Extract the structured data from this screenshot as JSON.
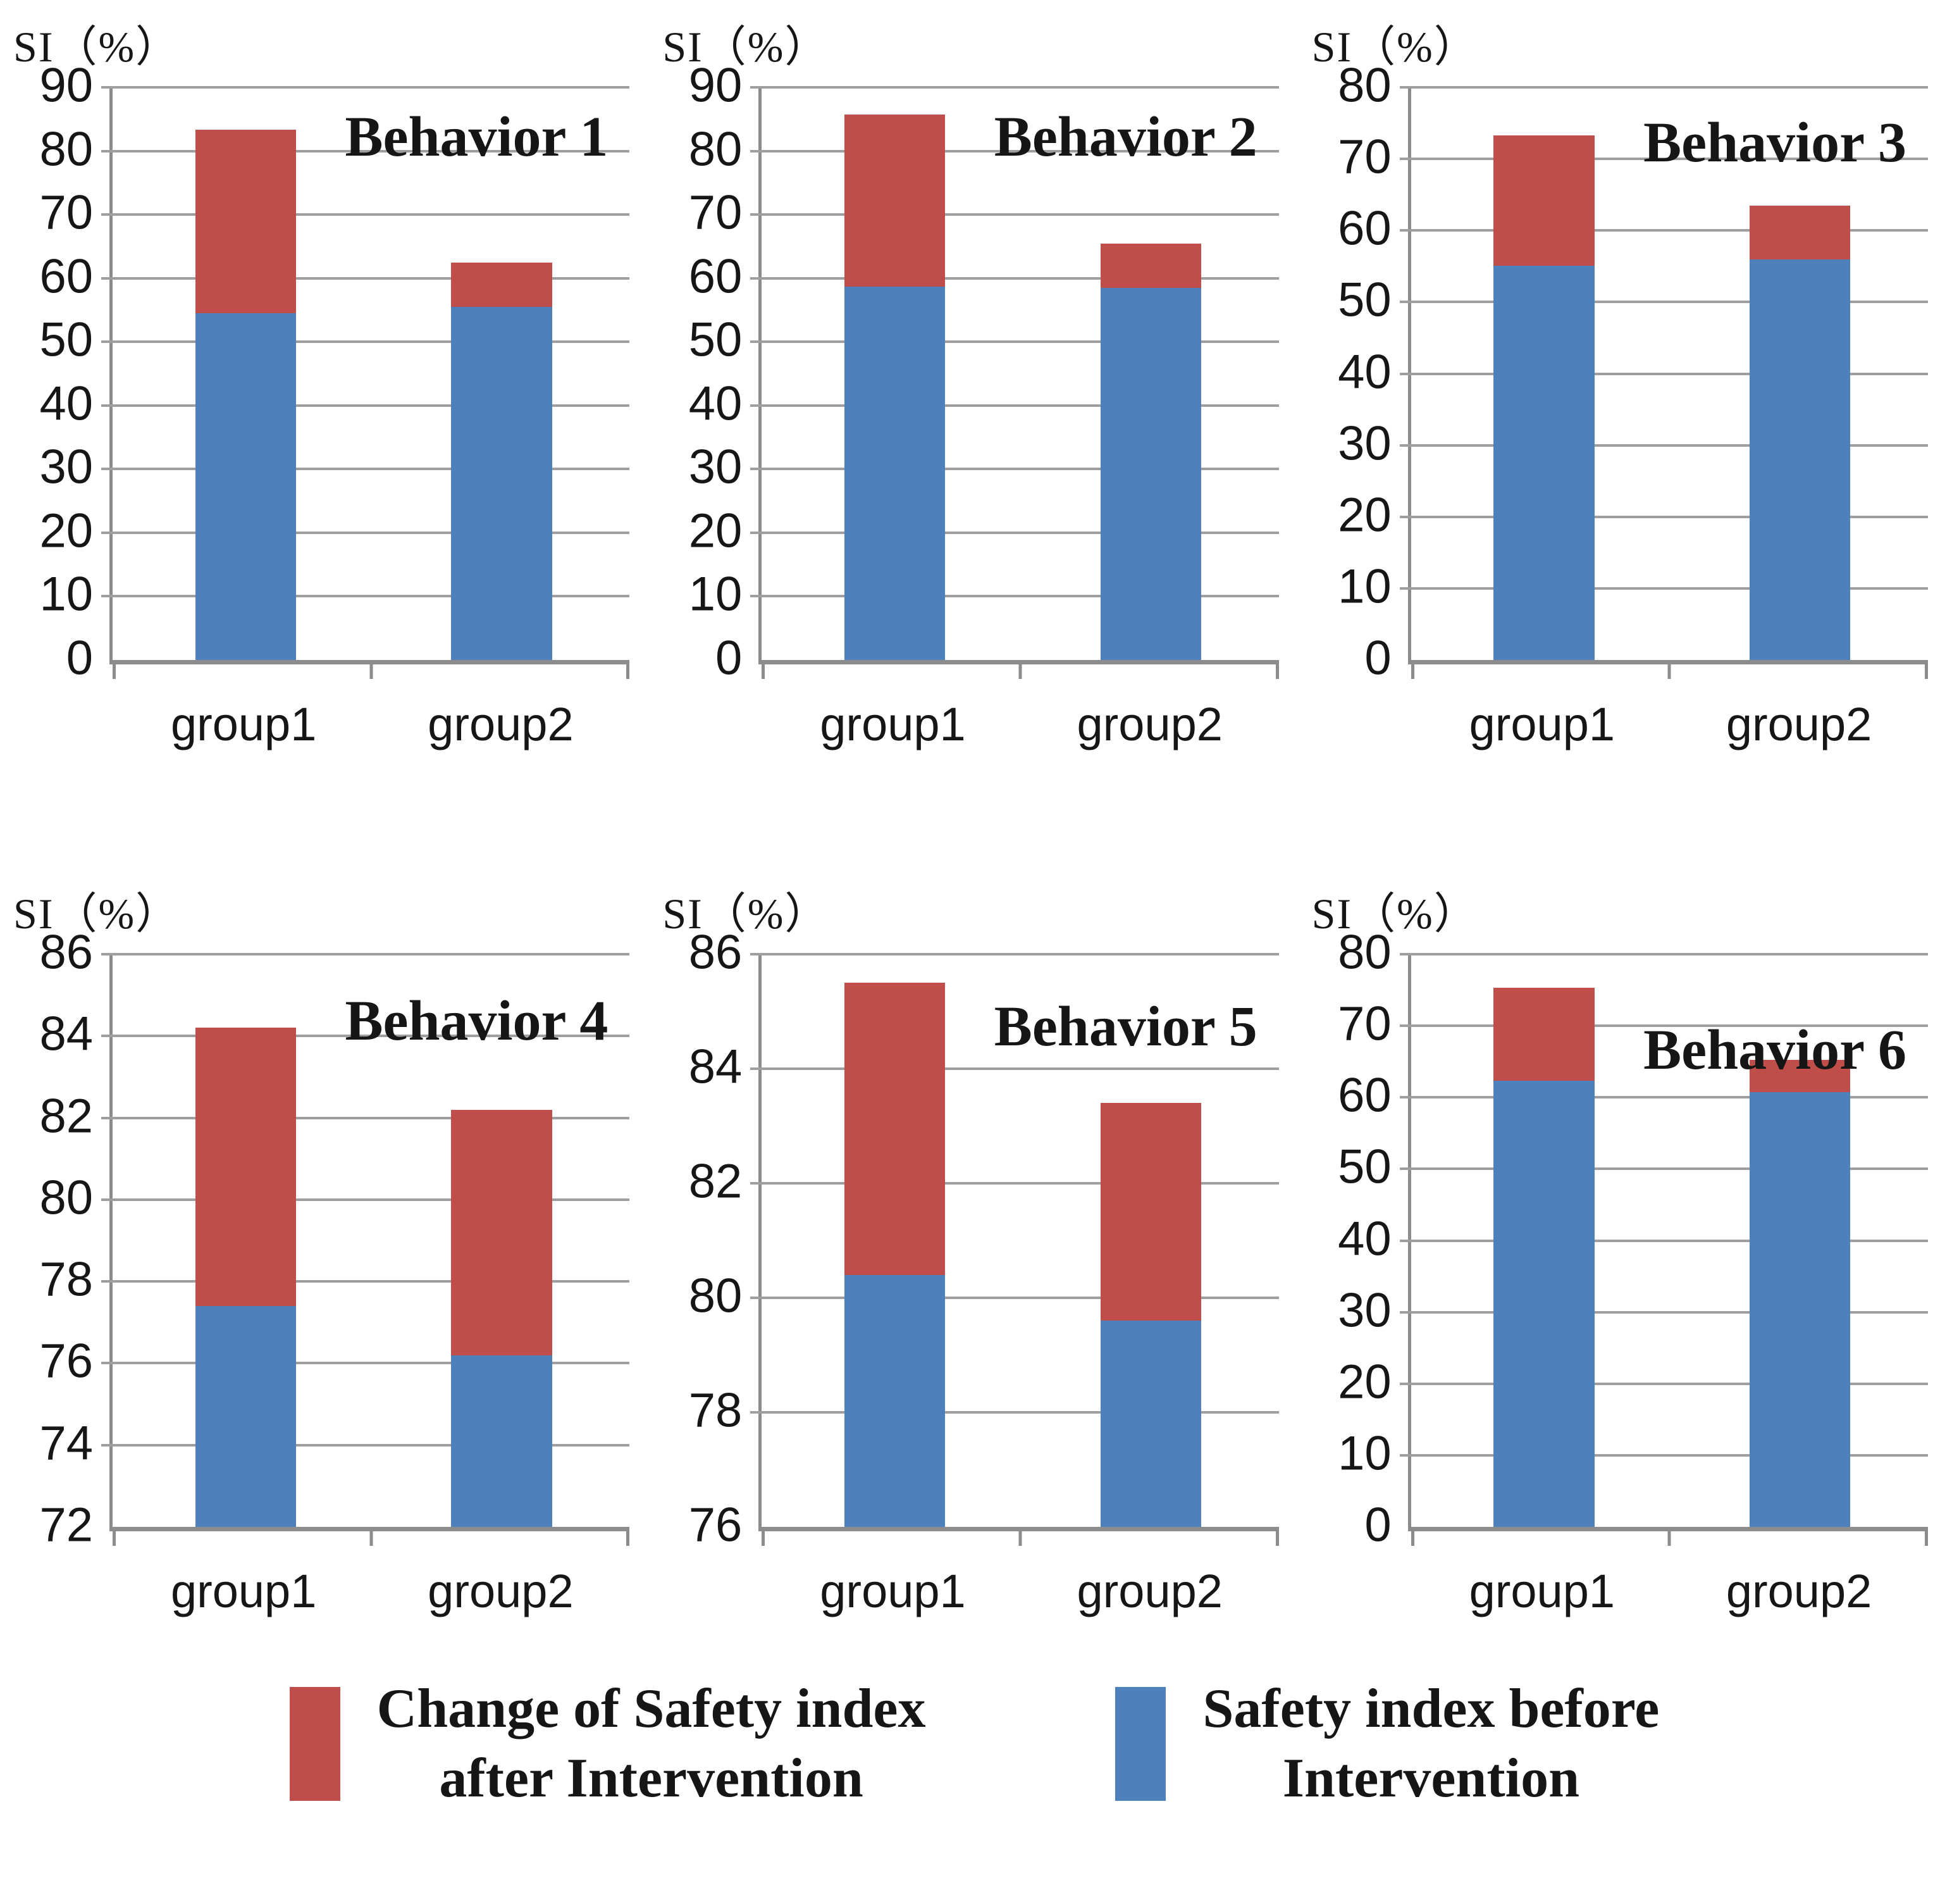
{
  "colors": {
    "series_red": "#BF4E4B",
    "series_blue": "#4E80BC",
    "gridline": "#9E9E9E",
    "axis": "#8C8C8C",
    "text": "#161616"
  },
  "legend": {
    "items": [
      {
        "label": "Change of Safety index\nafter Intervention",
        "color_key": "series_red"
      },
      {
        "label": "Safety index before\nIntervention",
        "color_key": "series_blue"
      }
    ]
  },
  "chart_data": [
    {
      "type": "bar",
      "stacked": true,
      "title": "Behavior 1",
      "ylabel": "SI（%）",
      "categories": [
        "group1",
        "group2"
      ],
      "ylim": [
        0,
        90
      ],
      "ytick_step": 10,
      "grid": true,
      "legend_position": "figure-bottom",
      "title_top_pct": 3,
      "series": [
        {
          "name": "Safety index before Intervention",
          "color_key": "series_blue",
          "values": [
            54.5,
            55.5
          ]
        },
        {
          "name": "Change of Safety index after Intervention",
          "color_key": "series_red",
          "values": [
            28.8,
            7.0
          ]
        }
      ],
      "totals": [
        83.3,
        62.5
      ]
    },
    {
      "type": "bar",
      "stacked": true,
      "title": "Behavior 2",
      "ylabel": "SI（%）",
      "categories": [
        "group1",
        "group2"
      ],
      "ylim": [
        0,
        90
      ],
      "ytick_step": 10,
      "grid": true,
      "legend_position": "figure-bottom",
      "title_top_pct": 3,
      "series": [
        {
          "name": "Safety index before Intervention",
          "color_key": "series_blue",
          "values": [
            58.7,
            58.5
          ]
        },
        {
          "name": "Change of Safety index after Intervention",
          "color_key": "series_red",
          "values": [
            27.0,
            6.9
          ]
        }
      ],
      "totals": [
        85.7,
        65.4
      ]
    },
    {
      "type": "bar",
      "stacked": true,
      "title": "Behavior 3",
      "ylabel": "SI（%）",
      "categories": [
        "group1",
        "group2"
      ],
      "ylim": [
        0,
        80
      ],
      "ytick_step": 10,
      "grid": true,
      "legend_position": "figure-bottom",
      "title_top_pct": 4,
      "series": [
        {
          "name": "Safety index before Intervention",
          "color_key": "series_blue",
          "values": [
            55.1,
            56.0
          ]
        },
        {
          "name": "Change of Safety index after Intervention",
          "color_key": "series_red",
          "values": [
            18.2,
            7.5
          ]
        }
      ],
      "totals": [
        73.3,
        63.5
      ]
    },
    {
      "type": "bar",
      "stacked": true,
      "title": "Behavior 4",
      "ylabel": "SI（%）",
      "categories": [
        "group1",
        "group2"
      ],
      "ylim": [
        72,
        86
      ],
      "ytick_step": 2,
      "grid": true,
      "legend_position": "figure-bottom",
      "title_top_pct": 6,
      "series": [
        {
          "name": "Safety index before Intervention",
          "color_key": "series_blue",
          "values": [
            77.4,
            76.2
          ]
        },
        {
          "name": "Change of Safety index after Intervention",
          "color_key": "series_red",
          "values": [
            6.8,
            6.0
          ]
        }
      ],
      "totals": [
        84.2,
        82.2
      ]
    },
    {
      "type": "bar",
      "stacked": true,
      "title": "Behavior 5",
      "ylabel": "SI（%）",
      "categories": [
        "group1",
        "group2"
      ],
      "ylim": [
        76,
        86
      ],
      "ytick_step": 2,
      "grid": true,
      "legend_position": "figure-bottom",
      "title_top_pct": 7,
      "series": [
        {
          "name": "Safety index before Intervention",
          "color_key": "series_blue",
          "values": [
            80.4,
            79.6
          ]
        },
        {
          "name": "Change of Safety index after Intervention",
          "color_key": "series_red",
          "values": [
            5.1,
            3.8
          ]
        }
      ],
      "totals": [
        85.5,
        83.4
      ]
    },
    {
      "type": "bar",
      "stacked": true,
      "title": "Behavior 6",
      "ylabel": "SI（%）",
      "categories": [
        "group1",
        "group2"
      ],
      "ylim": [
        0,
        80
      ],
      "ytick_step": 10,
      "grid": true,
      "legend_position": "figure-bottom",
      "title_top_pct": 11,
      "series": [
        {
          "name": "Safety index before Intervention",
          "color_key": "series_blue",
          "values": [
            62.3,
            60.7
          ]
        },
        {
          "name": "Change of Safety index after Intervention",
          "color_key": "series_red",
          "values": [
            13.0,
            4.5
          ]
        }
      ],
      "totals": [
        75.3,
        65.2
      ]
    }
  ]
}
